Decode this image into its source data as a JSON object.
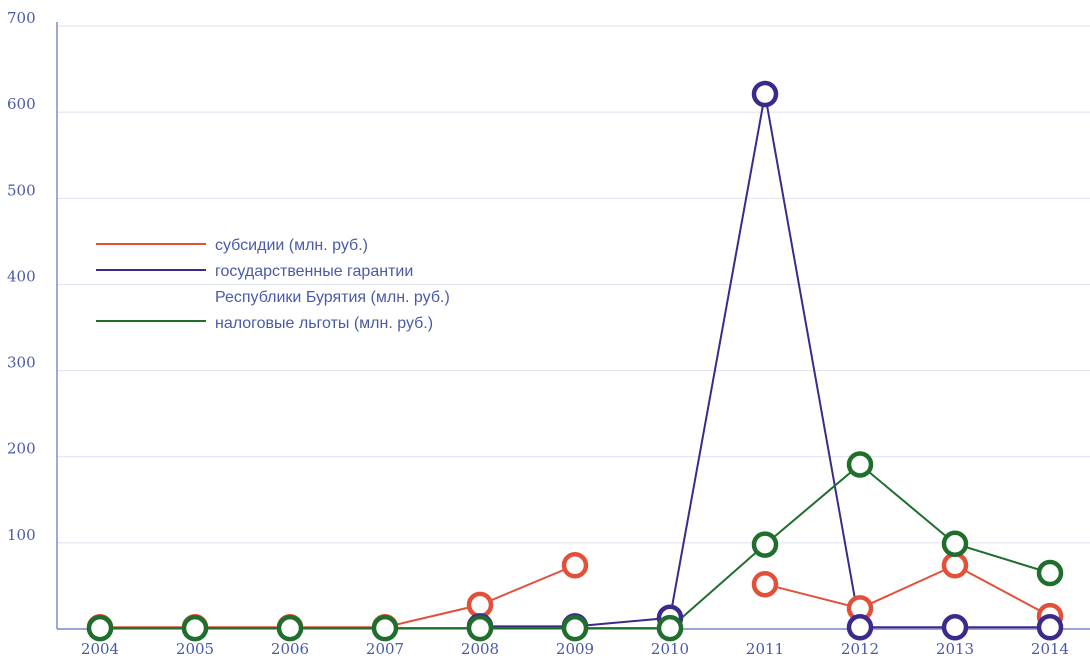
{
  "chart_data": {
    "type": "line",
    "title": "",
    "xlabel": "",
    "ylabel": "",
    "x": [
      "2004",
      "2005",
      "2006",
      "2007",
      "2008",
      "2009",
      "2010",
      "2011",
      "2012",
      "2013",
      "2014"
    ],
    "ylim": [
      0,
      700
    ],
    "yticks": [
      "100",
      "200",
      "300",
      "400",
      "500",
      "600",
      "700"
    ],
    "grid": true,
    "legend_position": "left",
    "series": [
      {
        "name": "субсидии (млн. руб.)",
        "color": "#e2503a",
        "values": [
          2,
          2,
          2,
          2,
          28,
          74,
          null,
          52,
          24,
          74,
          15
        ]
      },
      {
        "name_lines": [
          "государственные гарантии",
          "Республики Бурятия (млн. руб.)"
        ],
        "color": "#3b2a8c",
        "values": [
          null,
          null,
          null,
          null,
          3,
          3,
          13,
          621,
          2,
          2,
          2
        ]
      },
      {
        "name": "налоговые льготы (млн. руб.)",
        "color": "#1f6e2c",
        "values": [
          1,
          1,
          1,
          1,
          1,
          1,
          1,
          98,
          191,
          99,
          65
        ]
      }
    ]
  }
}
